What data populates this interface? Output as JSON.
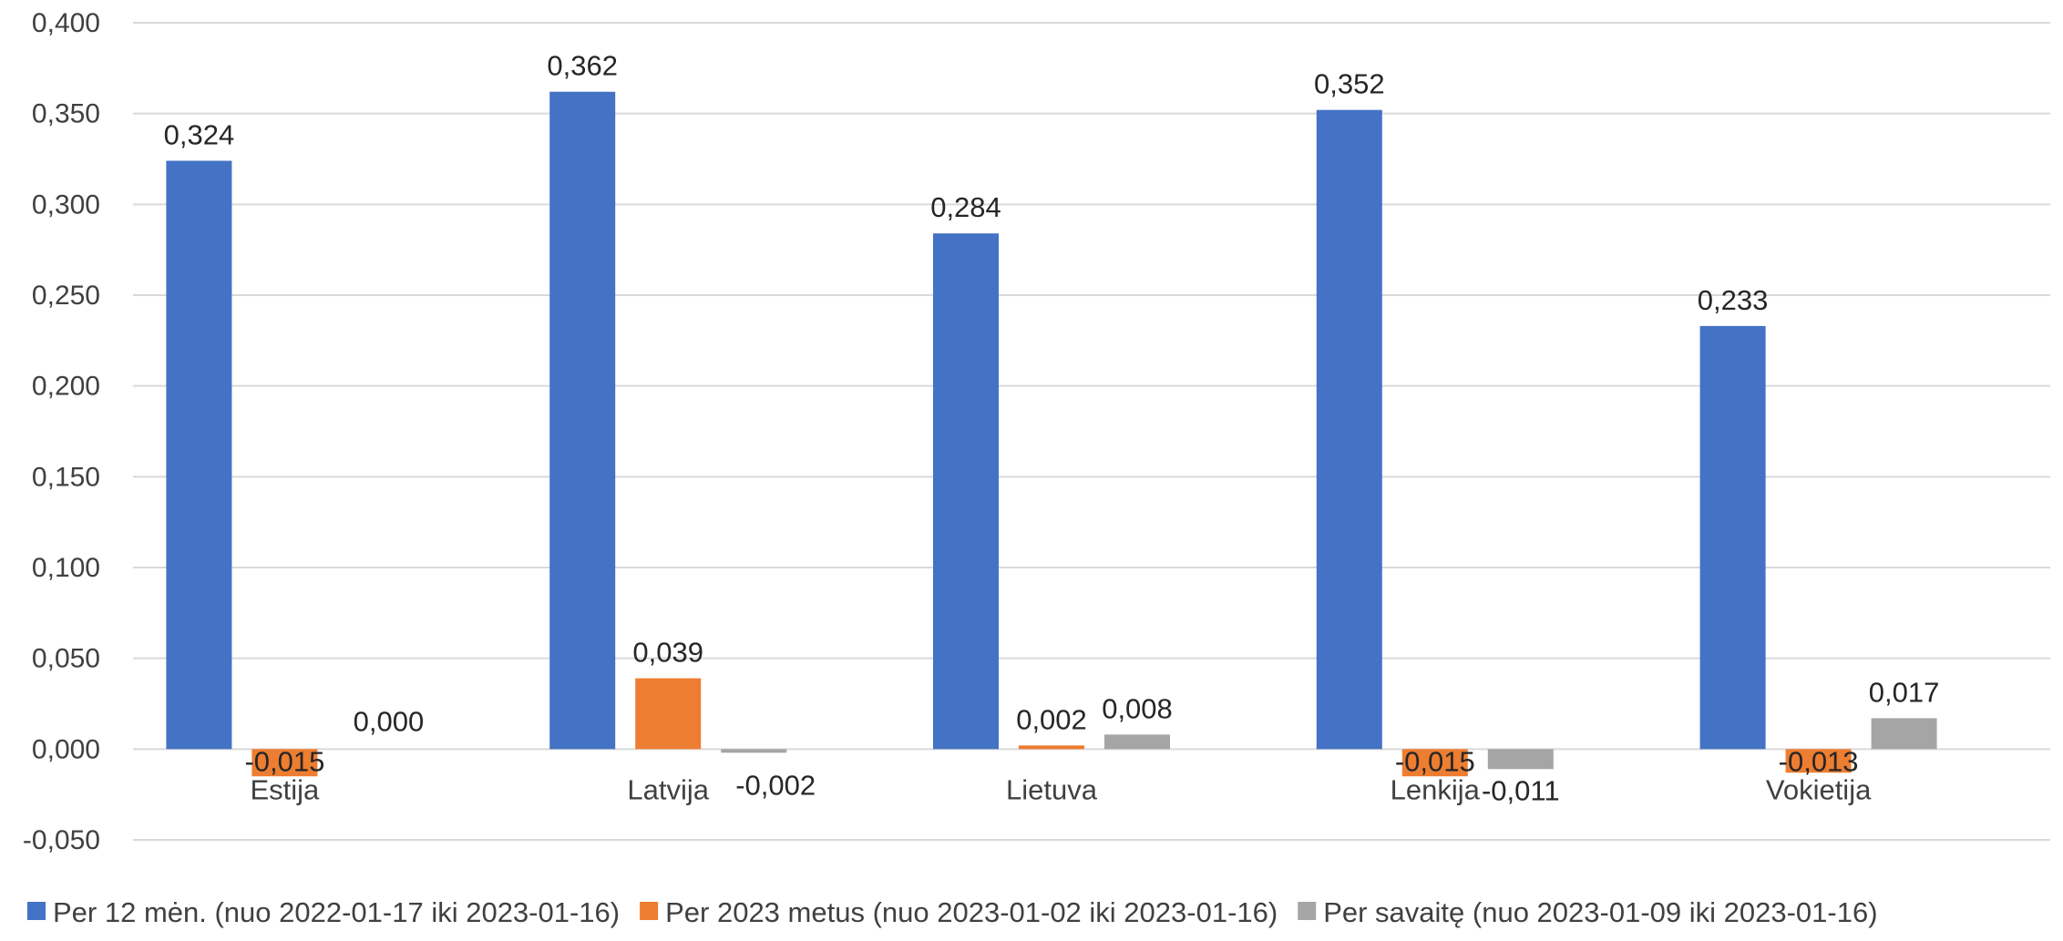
{
  "chart_data": {
    "type": "bar",
    "categories": [
      "Estija",
      "Latvija",
      "Lietuva",
      "Lenkija",
      "Vokietija"
    ],
    "series": [
      {
        "name": "Per 12 mėn. (nuo 2022-01-17 iki 2023-01-16)",
        "color": "#4472C4",
        "values": [
          0.324,
          0.362,
          0.284,
          0.352,
          0.233
        ],
        "labels": [
          "0,324",
          "0,362",
          "0,284",
          "0,352",
          "0,233"
        ]
      },
      {
        "name": "Per 2023 metus (nuo 2023-01-02 iki 2023-01-16)",
        "color": "#ED7D31",
        "values": [
          -0.015,
          0.039,
          0.002,
          -0.015,
          -0.013
        ],
        "labels": [
          "-0,015",
          "0,039",
          "0,002",
          "-0,015",
          "-0,013"
        ]
      },
      {
        "name": "Per savaitę (nuo 2023-01-09 iki 2023-01-16)",
        "color": "#A5A5A5",
        "values": [
          0.0,
          -0.002,
          0.008,
          -0.011,
          0.017
        ],
        "labels": [
          "0,000",
          "-0,002",
          "0,008",
          "-0,011",
          "0,017"
        ]
      }
    ],
    "ylim": [
      -0.05,
      0.4
    ],
    "yticks": [
      0.4,
      0.35,
      0.3,
      0.25,
      0.2,
      0.15,
      0.1,
      0.05,
      0,
      -0.05
    ],
    "ytick_labels": [
      "0,400",
      "0,350",
      "0,300",
      "0,250",
      "0,200",
      "0,150",
      "0,100",
      "0,050",
      "0,000",
      "-0,050"
    ],
    "grid": true,
    "legend_position": "bottom",
    "gridline_color": "#D9D9D9"
  }
}
